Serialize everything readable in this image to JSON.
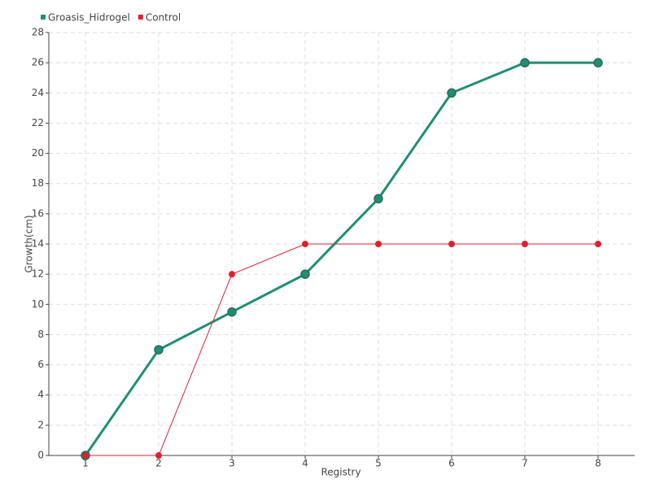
{
  "chart_data": {
    "type": "line",
    "x": [
      1,
      2,
      3,
      4,
      5,
      6,
      7,
      8
    ],
    "series": [
      {
        "name": "Groasis_Hidrogel",
        "color": "#1f8f73",
        "values": [
          0,
          7,
          9.5,
          12,
          17,
          24,
          26,
          26
        ]
      },
      {
        "name": "Control",
        "color": "#e0202e",
        "values": [
          0,
          0,
          12,
          14,
          14,
          14,
          14,
          14
        ]
      }
    ],
    "xlabel": "Registry",
    "ylabel": "Growth(cm)",
    "xlim": [
      0.5,
      8.5
    ],
    "xticks": [
      1,
      2,
      3,
      4,
      5,
      6,
      7,
      8
    ],
    "ylim": [
      0,
      28
    ],
    "yticks": [
      0,
      2,
      4,
      6,
      8,
      10,
      12,
      14,
      16,
      18,
      20,
      22,
      24,
      26,
      28
    ],
    "grid": true,
    "legend": "top-left"
  }
}
